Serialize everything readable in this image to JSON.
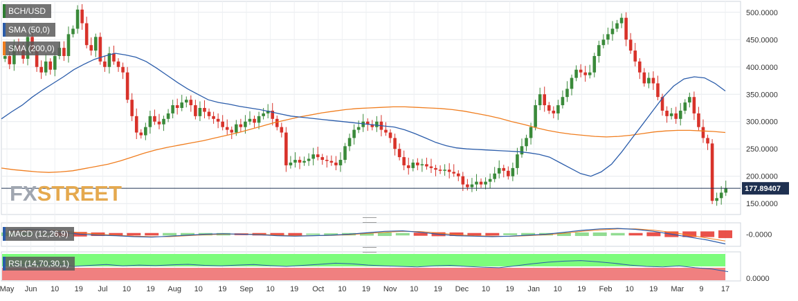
{
  "symbol": "BCH/USD",
  "indicators": {
    "sma50_label": "SMA (50,0)",
    "sma200_label": "SMA (200,0)",
    "macd_label": "MACD (12,26,9)",
    "rsi_label": "RSI (14,70,30,1)"
  },
  "watermark": {
    "part1": "FX",
    "part2": "STREET"
  },
  "current_price": "177.89407",
  "macd_axis_label": "-0.0000",
  "rsi_axis_label": "0.0000",
  "colors": {
    "sma50": "#2a5caa",
    "sma200": "#f07d1e",
    "candle_up": "#3a8a3a",
    "candle_down": "#d8322a",
    "rsi_overbought": "#7cfc7c",
    "rsi_oversold": "#f08080",
    "price_label_bg": "#1e3050"
  },
  "chart_data": {
    "type": "line",
    "title": "",
    "ylim": [
      130,
      520
    ],
    "yticks": [
      150,
      200,
      250,
      300,
      350,
      400,
      450,
      500
    ],
    "ytick_labels": [
      "150.0000",
      "200.0000",
      "250.0000",
      "300.0000",
      "350.0000",
      "400.0000",
      "450.0000",
      "500.0000"
    ],
    "xtick_labels": [
      "May",
      "Jun",
      "10",
      "19",
      "Jul",
      "10",
      "19",
      "Aug",
      "10",
      "19",
      "Sep",
      "10",
      "19",
      "Oct",
      "10",
      "19",
      "Nov",
      "10",
      "19",
      "Dec",
      "10",
      "19",
      "Jan",
      "10",
      "19",
      "Feb",
      "10",
      "19",
      "Mar",
      "9",
      "17"
    ],
    "price_close": [
      420,
      405,
      440,
      430,
      415,
      455,
      430,
      400,
      390,
      410,
      395,
      420,
      435,
      420,
      460,
      470,
      505,
      480,
      440,
      430,
      455,
      410,
      400,
      425,
      410,
      400,
      390,
      340,
      310,
      280,
      275,
      290,
      310,
      300,
      295,
      305,
      315,
      330,
      325,
      335,
      340,
      330,
      310,
      325,
      318,
      310,
      305,
      300,
      290,
      285,
      280,
      295,
      290,
      300,
      305,
      298,
      310,
      315,
      320,
      305,
      290,
      280,
      220,
      225,
      230,
      225,
      228,
      232,
      240,
      235,
      230,
      228,
      225,
      220,
      230,
      255,
      270,
      285,
      290,
      300,
      295,
      290,
      300,
      285,
      280,
      270,
      250,
      235,
      220,
      215,
      225,
      220,
      222,
      218,
      215,
      212,
      210,
      212,
      208,
      205,
      200,
      185,
      180,
      185,
      190,
      185,
      190,
      195,
      205,
      215,
      210,
      200,
      215,
      240,
      255,
      270,
      290,
      330,
      350,
      330,
      320,
      315,
      330,
      345,
      360,
      380,
      395,
      390,
      385,
      390,
      420,
      440,
      450,
      460,
      470,
      480,
      490,
      450,
      430,
      410,
      390,
      370,
      380,
      370,
      345,
      320,
      310,
      315,
      305,
      320,
      335,
      345,
      315,
      290,
      270,
      260,
      155,
      160,
      170,
      178
    ],
    "sma50": [
      305,
      318,
      330,
      345,
      358,
      370,
      382,
      395,
      405,
      414,
      420,
      425,
      422,
      418,
      410,
      398,
      385,
      372,
      360,
      350,
      340,
      335,
      332,
      328,
      325,
      322,
      318,
      314,
      310,
      308,
      306,
      304,
      302,
      300,
      298,
      296,
      294,
      292,
      290,
      285,
      278,
      270,
      262,
      256,
      252,
      250,
      249,
      248,
      247,
      246,
      245,
      243,
      240,
      235,
      225,
      215,
      205,
      200,
      208,
      222,
      245,
      270,
      295,
      320,
      345,
      365,
      378,
      382,
      380,
      370,
      356
    ],
    "sma200": [
      215,
      212,
      210,
      208,
      207,
      208,
      210,
      214,
      218,
      222,
      228,
      235,
      242,
      248,
      253,
      257,
      261,
      265,
      270,
      275,
      280,
      286,
      292,
      298,
      303,
      308,
      312,
      316,
      319,
      322,
      324,
      325,
      326,
      327,
      327,
      326,
      325,
      324,
      322,
      319,
      315,
      311,
      306,
      300,
      295,
      289,
      284,
      280,
      277,
      275,
      273,
      272,
      273,
      275,
      278,
      281,
      283,
      284,
      284,
      283,
      282,
      280
    ],
    "macd_line": [
      0.4,
      0.5,
      0.45,
      0.2,
      0.0,
      -0.1,
      -0.15,
      -0.25,
      -0.3,
      -0.2,
      -0.1,
      0.0,
      0.05,
      0.0,
      -0.05,
      -0.15,
      -0.2,
      -0.15,
      -0.1,
      0.0,
      0.15,
      0.3,
      0.35,
      0.2,
      0.0,
      -0.15,
      -0.2,
      -0.25,
      -0.2,
      -0.1,
      0.0,
      0.2,
      0.4,
      0.55,
      0.6,
      0.5,
      0.3,
      0.0,
      -0.3,
      -0.6,
      -1.0
    ],
    "macd_signal": [
      0.3,
      0.4,
      0.45,
      0.35,
      0.15,
      0.0,
      -0.1,
      -0.2,
      -0.25,
      -0.25,
      -0.15,
      -0.05,
      0.0,
      0.02,
      0.0,
      -0.1,
      -0.15,
      -0.15,
      -0.12,
      -0.05,
      0.08,
      0.2,
      0.3,
      0.28,
      0.12,
      -0.05,
      -0.15,
      -0.2,
      -0.22,
      -0.15,
      -0.05,
      0.1,
      0.3,
      0.45,
      0.55,
      0.55,
      0.42,
      0.2,
      -0.1,
      -0.4,
      -0.7
    ],
    "rsi": [
      60,
      55,
      62,
      58,
      50,
      54,
      57,
      52,
      55,
      53,
      56,
      58,
      54,
      52,
      55,
      57,
      53,
      50,
      54,
      58,
      62,
      60,
      55,
      52,
      50,
      48,
      52,
      54,
      50,
      47,
      45,
      52,
      60,
      66,
      70,
      72,
      68,
      62,
      55,
      50,
      48,
      52,
      45,
      40,
      30
    ]
  }
}
